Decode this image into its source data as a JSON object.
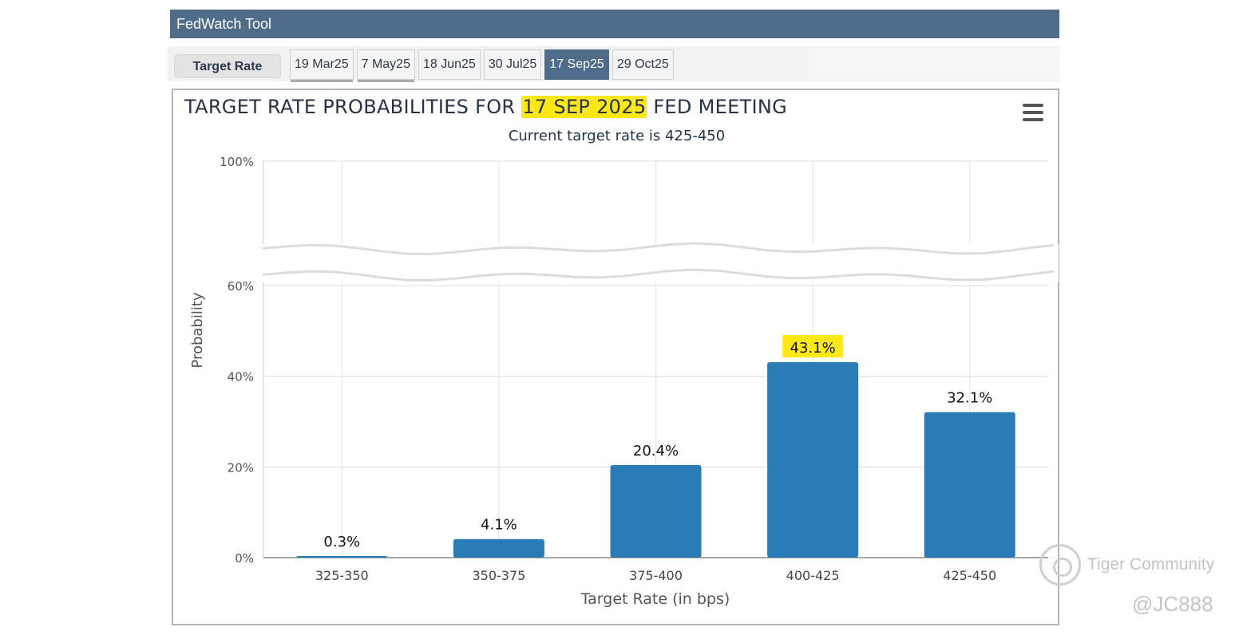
{
  "app": {
    "title": "FedWatch Tool",
    "target_rate_button": "Target Rate",
    "tabs": [
      {
        "label": "19 Mar25",
        "active": false
      },
      {
        "label": "7 May25",
        "active": false
      },
      {
        "label": "18 Jun25",
        "active": false
      },
      {
        "label": "30 Jul25",
        "active": false
      },
      {
        "label": "17 Sep25",
        "active": true
      },
      {
        "label": "29 Oct25",
        "active": false
      }
    ]
  },
  "chart": {
    "title_before": "TARGET RATE PROBABILITIES FOR ",
    "title_highlight": "17 SEP 2025",
    "title_after": " FED MEETING",
    "subtitle": "Current target rate is 425-450",
    "menu_icon": "hamburger-menu-icon"
  },
  "chart_data": {
    "type": "bar",
    "categories": [
      "325-350",
      "350-375",
      "375-400",
      "400-425",
      "425-450"
    ],
    "values": [
      0.3,
      4.1,
      20.4,
      43.1,
      32.1
    ],
    "data_labels": [
      "0.3%",
      "4.1%",
      "20.4%",
      "43.1%",
      "32.1%"
    ],
    "highlighted_label": "43.1%",
    "xlabel": "Target Rate (in bps)",
    "ylabel": "Probability",
    "y_ticks_lower": [
      "0%",
      "20%",
      "40%",
      "60%"
    ],
    "y_tick_top": "100%",
    "ylim": [
      0,
      100
    ],
    "axis_break": true,
    "grid": true,
    "bar_color": "#2b7bb6",
    "highlight_color": "#ffe816"
  },
  "watermark": {
    "name": "Tiger Community",
    "handle": "@JC888"
  }
}
